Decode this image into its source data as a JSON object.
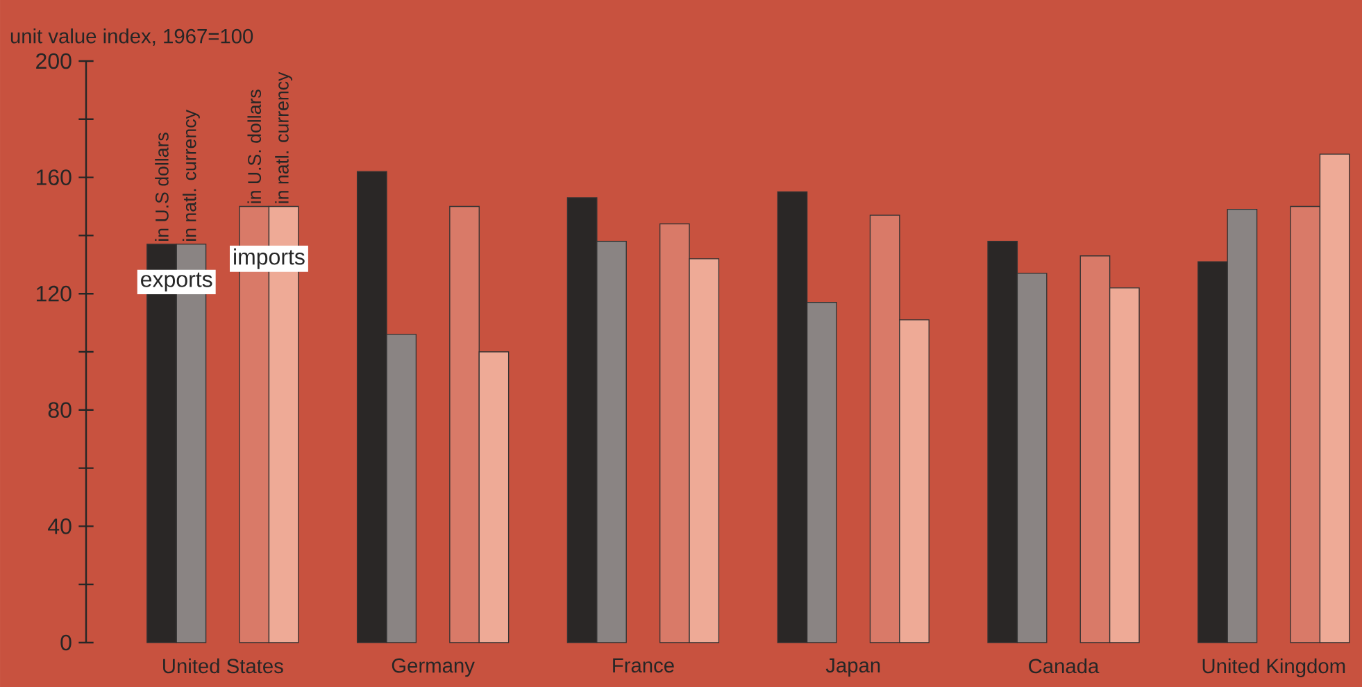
{
  "chart_data": {
    "type": "bar",
    "ylabel": "unit value index, 1967=100",
    "categories": [
      "United States",
      "Germany",
      "France",
      "Japan",
      "Canada",
      "United Kingdom"
    ],
    "series": [
      {
        "name": "in U.S dollars",
        "color": "#2a2726",
        "values": [
          137,
          162,
          153,
          155,
          138,
          131
        ]
      },
      {
        "name": "in natl. currency",
        "color": "#8a8483",
        "values": [
          137,
          106,
          138,
          117,
          127,
          149
        ]
      },
      {
        "name": "in U.S. dollars",
        "color": "#d97a68",
        "values": [
          150,
          150,
          144,
          147,
          133,
          150
        ]
      },
      {
        "name": "in natl. currency",
        "color": "#eeaa96",
        "values": [
          150,
          100,
          132,
          111,
          122,
          168
        ]
      }
    ],
    "annotations": [
      "exports",
      "imports"
    ],
    "ylim": [
      0,
      200
    ],
    "yticks": [
      0,
      40,
      80,
      120,
      160,
      200
    ],
    "grid": false
  }
}
